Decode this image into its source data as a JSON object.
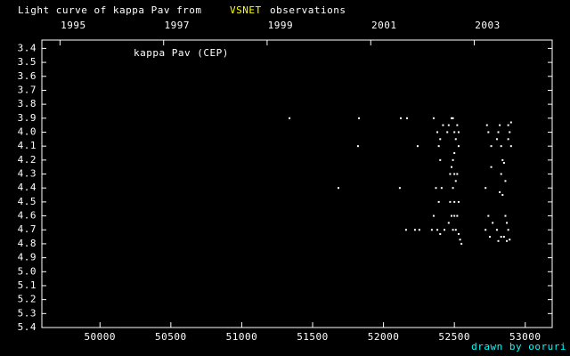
{
  "chart_data": {
    "type": "scatter",
    "title": "Light curve of kappa Pav from",
    "title_highlight": "VSNET",
    "title_end": "observations",
    "credit": "drawn by ooruri",
    "xlim": [
      49590,
      53190
    ],
    "ylim": [
      5.4,
      3.34
    ],
    "inverted_y": true,
    "xticks": [
      50000,
      50500,
      51000,
      51500,
      52000,
      52500,
      53000
    ],
    "x2ticks": [
      {
        "value": 49718,
        "label": "1995"
      },
      {
        "value": 50449,
        "label": "1997"
      },
      {
        "value": 51179,
        "label": "1999"
      },
      {
        "value": 51910,
        "label": "2001"
      },
      {
        "value": 52640,
        "label": "2003"
      }
    ],
    "yticks": [
      3.4,
      3.5,
      3.6,
      3.7,
      3.8,
      3.9,
      {
        "value": 4,
        "label": "4.0"
      },
      4.1,
      4.2,
      4.3,
      4.4,
      4.5,
      4.6,
      4.7,
      4.8,
      4.9,
      {
        "value": 5,
        "label": "5.0"
      },
      5.1,
      5.2,
      5.3,
      5.4
    ],
    "series": [
      {
        "name": "kappa Pav (CEP)",
        "color": "#ffffff",
        "x": [
          51337,
          51827,
          51820,
          51682,
          52122,
          52166,
          52241,
          52115,
          52159,
          52222,
          52253,
          52354,
          52354,
          52341,
          52380,
          52400,
          52420,
          52390,
          52400,
          52410,
          52390,
          52370,
          52380,
          52400,
          52430,
          52450,
          52460,
          52480,
          52490,
          52500,
          52510,
          52520,
          52530,
          52470,
          52480,
          52490,
          52500,
          52510,
          52520,
          52490,
          52470,
          52500,
          52530,
          52480,
          52500,
          52520,
          52490,
          52510,
          52530,
          52540,
          52550,
          52460,
          52500,
          52530,
          52730,
          52740,
          52720,
          52720,
          52740,
          52750,
          52760,
          52760,
          52770,
          52800,
          52810,
          52800,
          52820,
          52830,
          52840,
          52850,
          52840,
          52820,
          52830,
          52860,
          52860,
          52870,
          52880,
          52850,
          52870,
          52890,
          52880,
          52890,
          52900,
          52880,
          52900,
          52830,
          52810
        ],
        "values": [
          3.9,
          3.9,
          4.1,
          4.4,
          3.9,
          3.9,
          4.1,
          4.4,
          4.7,
          4.7,
          4.7,
          3.9,
          4.6,
          4.7,
          4.0,
          4.05,
          3.95,
          4.1,
          4.2,
          4.4,
          4.5,
          4.4,
          4.7,
          4.73,
          4.7,
          4.0,
          3.95,
          3.9,
          3.9,
          4.0,
          4.05,
          3.95,
          4.0,
          4.3,
          4.25,
          4.2,
          4.3,
          4.35,
          4.3,
          4.4,
          4.5,
          4.5,
          4.5,
          4.6,
          4.6,
          4.6,
          4.7,
          4.7,
          4.73,
          4.77,
          4.8,
          4.65,
          4.15,
          4.1,
          3.95,
          4.0,
          4.4,
          4.7,
          4.6,
          4.75,
          4.1,
          4.25,
          4.65,
          4.05,
          4.0,
          4.7,
          3.95,
          4.1,
          4.2,
          4.22,
          4.45,
          4.43,
          4.3,
          4.35,
          4.6,
          4.65,
          4.7,
          4.75,
          4.78,
          4.77,
          3.95,
          4.0,
          3.93,
          4.05,
          4.1,
          4.75,
          4.78
        ]
      }
    ]
  }
}
